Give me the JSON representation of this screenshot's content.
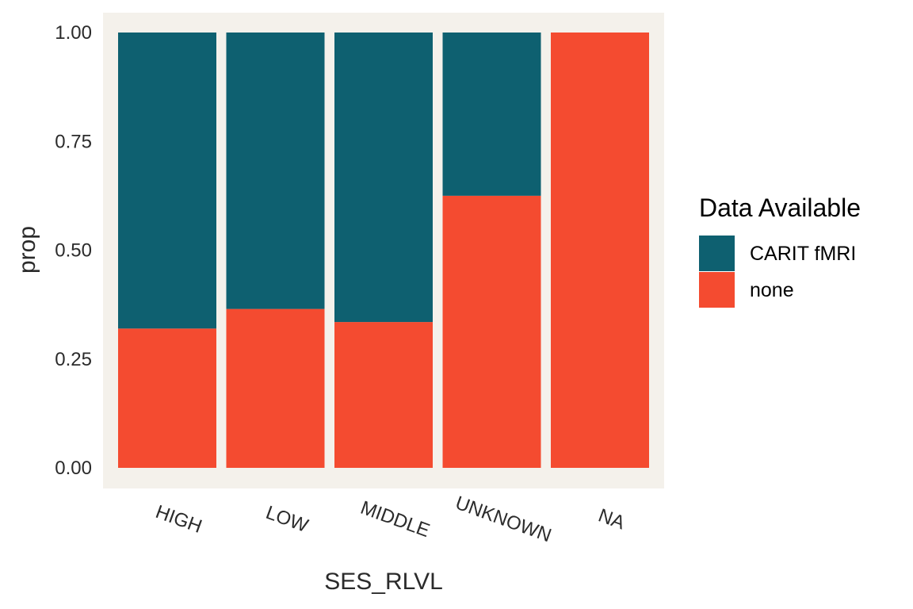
{
  "chart_data": {
    "type": "bar",
    "stacked": true,
    "xlabel": "SES_RLVL",
    "ylabel": "prop",
    "ylim": [
      0,
      1
    ],
    "yticks": [
      "0.00",
      "0.25",
      "0.50",
      "0.75",
      "1.00"
    ],
    "categories": [
      "HIGH",
      "LOW",
      "MIDDLE",
      "UNKNOWN",
      "NA"
    ],
    "series": [
      {
        "name": "none",
        "color": "#f44b30",
        "values": [
          0.32,
          0.365,
          0.335,
          0.625,
          1.0
        ]
      },
      {
        "name": "CARIT fMRI",
        "color": "#0e6070",
        "values": [
          0.68,
          0.635,
          0.665,
          0.375,
          0.0
        ]
      }
    ],
    "legend": {
      "title": "Data Available",
      "position": "right",
      "entries": [
        {
          "label": "CARIT fMRI",
          "color": "#0e6070"
        },
        {
          "label": "none",
          "color": "#f44b30"
        }
      ]
    },
    "panel_background": "#f4f1eb"
  }
}
